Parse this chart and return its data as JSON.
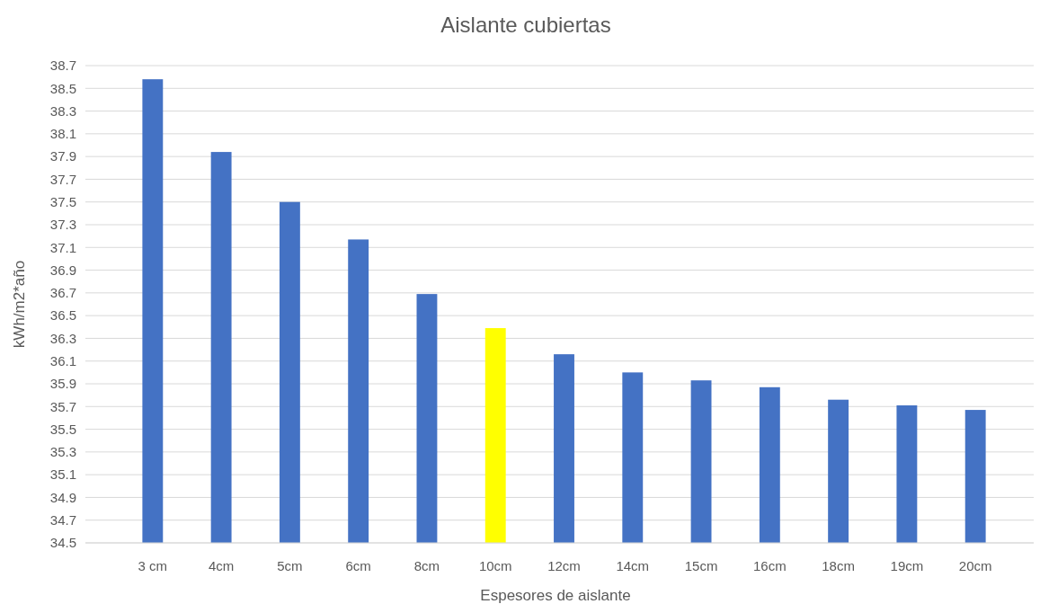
{
  "chart_data": {
    "type": "bar",
    "title": "Aislante cubiertas",
    "xlabel": "Espesores de aislante",
    "ylabel": "kWh/m2*año",
    "categories": [
      "3 cm",
      "4cm",
      "5cm",
      "6cm",
      "8cm",
      "10cm",
      "12cm",
      "14cm",
      "15cm",
      "16cm",
      "18cm",
      "19cm",
      "20cm"
    ],
    "values": [
      38.58,
      37.94,
      37.5,
      37.17,
      36.69,
      36.39,
      36.16,
      36.0,
      35.93,
      35.87,
      35.76,
      35.71,
      35.67
    ],
    "colors": [
      "#4472c4",
      "#4472c4",
      "#4472c4",
      "#4472c4",
      "#4472c4",
      "#ffff00",
      "#4472c4",
      "#4472c4",
      "#4472c4",
      "#4472c4",
      "#4472c4",
      "#4472c4",
      "#4472c4"
    ],
    "ylim": [
      34.5,
      38.7
    ],
    "yticks": [
      34.5,
      34.7,
      34.9,
      35.1,
      35.3,
      35.5,
      35.7,
      35.9,
      36.1,
      36.3,
      36.5,
      36.7,
      36.9,
      37.1,
      37.3,
      37.5,
      37.7,
      37.9,
      38.1,
      38.3,
      38.5,
      38.7
    ],
    "grid": "y"
  }
}
